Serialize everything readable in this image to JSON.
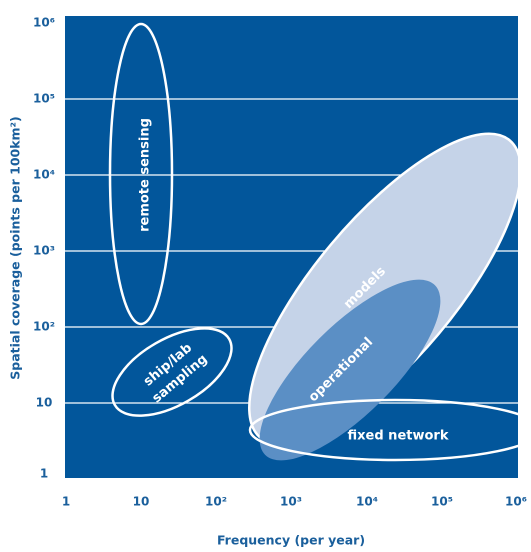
{
  "colors": {
    "panel": "#02569b",
    "ticks": "#1a5f9c",
    "light_fill": "#c5d3e8",
    "mid_fill": "#5b8fc5",
    "white": "#ffffff"
  },
  "axes": {
    "xlabel": "Frequency (per year)",
    "ylabel": "Spatial coverage (points per 100km²)",
    "xticks": [
      "1",
      "10",
      "10²",
      "10³",
      "10⁴",
      "10⁵",
      "10⁶"
    ],
    "yticks": [
      "1",
      "10",
      "10²",
      "10³",
      "10⁴",
      "10⁵",
      "10⁶"
    ]
  },
  "regions": {
    "remote_sensing": "remote sensing",
    "ship_lab_line1": "ship/lab",
    "ship_lab_line2": "sampling",
    "models": "models",
    "operational": "operational",
    "fixed_network": "fixed network"
  }
}
